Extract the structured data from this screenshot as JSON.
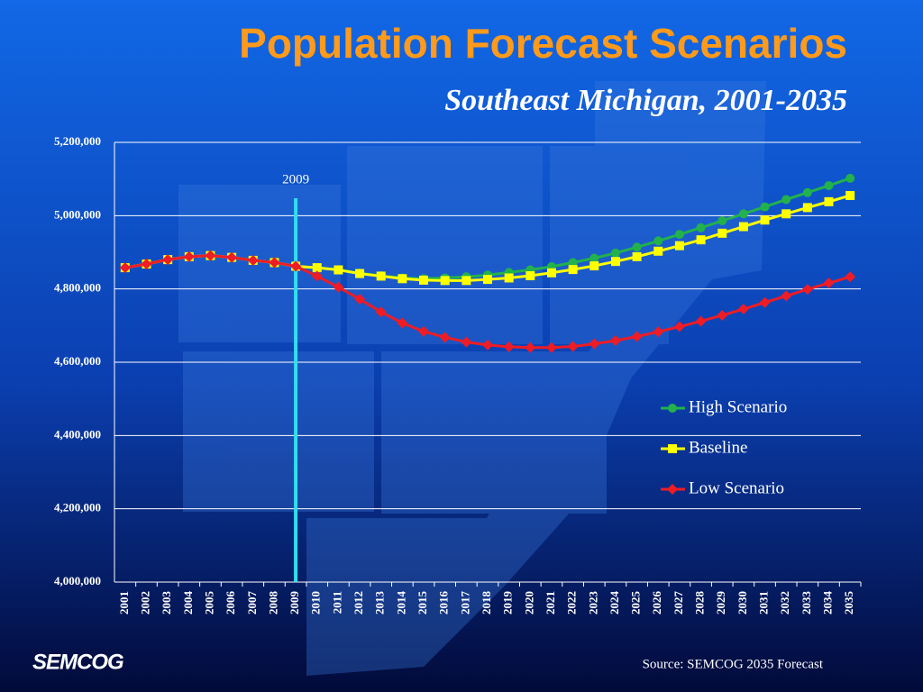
{
  "chart_data": {
    "type": "line",
    "title": "Population Forecast Scenarios",
    "subtitle": "Southeast Michigan, 2001-2035",
    "annotation": "2009",
    "logo": "SEMCOG",
    "source": "Source: SEMCOG 2035 Forecast",
    "categories": [
      "2001",
      "2002",
      "2003",
      "2004",
      "2005",
      "2006",
      "2007",
      "2008",
      "2009",
      "2010",
      "2011",
      "2012",
      "2013",
      "2014",
      "2015",
      "2016",
      "2017",
      "2018",
      "2019",
      "2020",
      "2021",
      "2022",
      "2023",
      "2024",
      "2025",
      "2026",
      "2027",
      "2028",
      "2029",
      "2030",
      "2031",
      "2032",
      "2033",
      "2034",
      "2035"
    ],
    "series": [
      {
        "name": "High Scenario",
        "color": "#22b14c",
        "marker": "circle",
        "values": [
          4858000,
          4868000,
          4880000,
          4888000,
          4891000,
          4886000,
          4878000,
          4872000,
          4862000,
          4858000,
          4852000,
          4843000,
          4836000,
          4830000,
          4828000,
          4830000,
          4833000,
          4838000,
          4845000,
          4852000,
          4861000,
          4872000,
          4884000,
          4898000,
          4914000,
          4931000,
          4949000,
          4967000,
          4986000,
          5005000,
          5024000,
          5044000,
          5063000,
          5082000,
          5102000
        ]
      },
      {
        "name": "Baseline",
        "color": "#ffff00",
        "marker": "square",
        "values": [
          4858000,
          4868000,
          4880000,
          4888000,
          4891000,
          4886000,
          4878000,
          4872000,
          4862000,
          4858000,
          4852000,
          4842000,
          4835000,
          4828000,
          4824000,
          4823000,
          4823000,
          4826000,
          4830000,
          4836000,
          4844000,
          4853000,
          4863000,
          4875000,
          4888000,
          4903000,
          4918000,
          4934000,
          4952000,
          4970000,
          4988000,
          5005000,
          5022000,
          5038000,
          5055000
        ]
      },
      {
        "name": "Low Scenario",
        "color": "#ee1c25",
        "marker": "diamond",
        "values": [
          4858000,
          4868000,
          4880000,
          4888000,
          4891000,
          4886000,
          4878000,
          4872000,
          4862000,
          4835000,
          4805000,
          4772000,
          4737000,
          4707000,
          4684000,
          4668000,
          4655000,
          4647000,
          4642000,
          4640000,
          4640000,
          4643000,
          4650000,
          4659000,
          4670000,
          4683000,
          4697000,
          4712000,
          4728000,
          4745000,
          4763000,
          4781000,
          4799000,
          4816000,
          4833000
        ]
      }
    ],
    "ylim": [
      4000000,
      5200000
    ],
    "yticks": [
      {
        "value": 4000000,
        "label": "4,000,000"
      },
      {
        "value": 4200000,
        "label": "4,200,000"
      },
      {
        "value": 4400000,
        "label": "4,400,000"
      },
      {
        "value": 4600000,
        "label": "4,600,000"
      },
      {
        "value": 4800000,
        "label": "4,800,000"
      },
      {
        "value": 5000000,
        "label": "5,000,000"
      },
      {
        "value": 5200000,
        "label": "5,200,000"
      }
    ],
    "grid": true,
    "legend": "right"
  }
}
